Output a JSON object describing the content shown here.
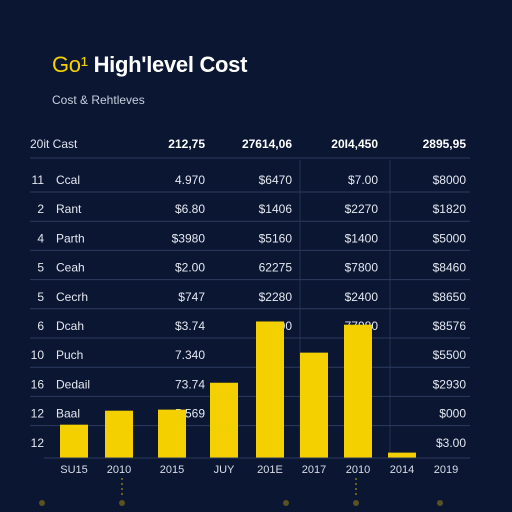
{
  "title_accent": "Go¹",
  "title_main": "High'level Cost",
  "subtitle": "Cost & Rehtleves",
  "colors": {
    "background": "#0b1633",
    "bar": "#f5d000",
    "accent": "#f5d000",
    "grid": "#2c3b5e"
  },
  "table": {
    "header": [
      "20it Cast",
      "212,75",
      "27614,06",
      "20I4,450",
      "2895,95"
    ],
    "rows": [
      {
        "num": "11",
        "label": "Ccal",
        "cells": [
          "4.970",
          "$6470",
          "$7.00",
          "$8000"
        ]
      },
      {
        "num": "2",
        "label": "Rant",
        "cells": [
          "$6.80",
          "$1406",
          "$2270",
          "$1820"
        ]
      },
      {
        "num": "4",
        "label": "Parth",
        "cells": [
          "$3980",
          "$5160",
          "$1400",
          "$5000"
        ]
      },
      {
        "num": "5",
        "label": "Ceah",
        "cells": [
          "$2.00",
          "62275",
          "$7800",
          "$8460"
        ]
      },
      {
        "num": "5",
        "label": "Cecrh",
        "cells": [
          "$747",
          "$2280",
          "$2400",
          "$8650"
        ]
      },
      {
        "num": "6",
        "label": "Dcah",
        "cells": [
          "$3.74",
          "41500",
          "77980",
          "$8576"
        ]
      },
      {
        "num": "10",
        "label": "Puch",
        "cells": [
          "7.340",
          "",
          "",
          "$5500"
        ]
      },
      {
        "num": "16",
        "label": "Dedail",
        "cells": [
          "73.74",
          "",
          "",
          "$2930"
        ]
      },
      {
        "num": "12",
        "label": "Baal",
        "cells": [
          "5.569",
          "",
          "",
          "$000"
        ]
      },
      {
        "num": "12",
        "label": "",
        "cells": [
          "",
          "",
          "",
          "$3.00"
        ]
      }
    ]
  },
  "chart_data": {
    "type": "bar",
    "categories": [
      "SU15",
      "2010",
      "2015",
      "JUY",
      "201E",
      "2017",
      "2010",
      "2014",
      "2019"
    ],
    "values": [
      1.55,
      2.2,
      2.25,
      3.5,
      6.35,
      4.9,
      6.2,
      0.25,
      0
    ],
    "ylim": [
      0,
      10
    ]
  }
}
